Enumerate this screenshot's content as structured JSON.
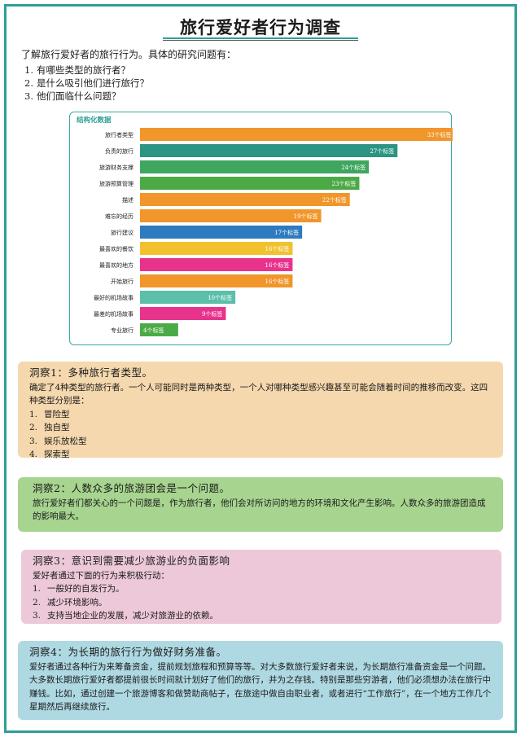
{
  "title": "旅行爱好者行为调查",
  "intro": "了解旅行爱好者的旅行行为。具体的研究问题有：",
  "questions": [
    {
      "num": "1.",
      "text": "有哪些类型的旅行者？"
    },
    {
      "num": "2.",
      "text": "是什么吸引他们进行旅行？"
    },
    {
      "num": "3.",
      "text": "他们面临什么问题？"
    }
  ],
  "chart_data": {
    "type": "bar",
    "orientation": "horizontal",
    "title": "结构化数据",
    "categories": [
      "旅行者类型",
      "负责的旅行",
      "旅游财务支撑",
      "旅游预算管理",
      "描述",
      "难忘的经历",
      "旅行建议",
      "最喜欢的餐饮",
      "最喜欢的地方",
      "开始旅行",
      "最好的机场故事",
      "最差的机场故事",
      "专业旅行"
    ],
    "values": [
      33,
      27,
      24,
      23,
      22,
      19,
      17,
      16,
      16,
      16,
      10,
      9,
      4
    ],
    "value_suffix": "个标签",
    "colors": [
      "#f0962a",
      "#2c9483",
      "#3fa660",
      "#4caa46",
      "#f0962a",
      "#f0962a",
      "#2e7bbf",
      "#f2c12e",
      "#e8338d",
      "#f0962a",
      "#5bbfaa",
      "#e8338d",
      "#4caa46"
    ],
    "xlim": [
      0,
      35
    ]
  },
  "cases": {
    "case1": {
      "title": "洞察1：多种旅行者类型。",
      "body": "确定了4种类型的旅行者。一个人可能同时是两种类型，一个人对哪种类型感兴趣甚至可能会随着时间的推移而改变。这四种类型分别是：",
      "items": [
        {
          "num": "1.",
          "text": "冒险型"
        },
        {
          "num": "2.",
          "text": "独自型"
        },
        {
          "num": "3.",
          "text": "娱乐放松型"
        },
        {
          "num": "4.",
          "text": "探索型"
        }
      ]
    },
    "case2": {
      "title": "洞察2：人数众多的旅游团会是一个问题。",
      "body": "旅行爱好者们都关心的一个问题是，作为旅行者，他们会对所访问的地方的环境和文化产生影响。人数众多的旅游团造成的影响最大。"
    },
    "case3": {
      "title": "洞察3：意识到需要减少旅游业的负面影响",
      "body": "爱好者通过下面的行为来积极行动：",
      "items": [
        {
          "num": "1.",
          "text": "一般好的自发行为。"
        },
        {
          "num": "2.",
          "text": "减少环境影响。"
        },
        {
          "num": "3.",
          "text": "支持当地企业的发展，减少对旅游业的依赖。"
        }
      ]
    },
    "case4": {
      "title": "洞察4：为长期的旅行行为做好财务准备。",
      "body": "爱好者通过各种行为来筹备资金，提前规划旅程和预算等等。对大多数旅行爱好者来说，为长期旅行准备资金是一个问题。大多数长期旅行爱好者都提前很长时间就计划好了他们的旅行，并为之存钱。特别是那些穷游者，他们必须想办法在旅行中赚钱。比如，通过创建一个旅游博客和做赞助商帖子，在旅途中做自由职业者，或者进行“工作旅行”，在一个地方工作几个星期然后再继续旅行。"
    }
  }
}
